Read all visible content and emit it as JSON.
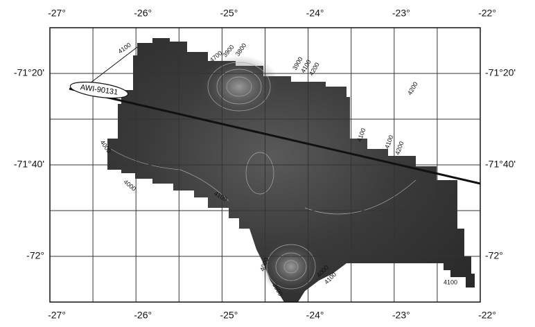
{
  "longitude_labels": [
    "-27°",
    "-26°",
    "-25°",
    "-24°",
    "-23°",
    "-22°"
  ],
  "latitude_labels": [
    "-71°20'",
    "-71°40'",
    "-72°"
  ],
  "profile_label": "AWI-90131",
  "contour_labels": [
    "4100",
    "4700",
    "3900",
    "3800",
    "3900",
    "4100",
    "4200",
    "4200",
    "4100",
    "4100",
    "4200",
    "4000",
    "4000",
    "4100",
    "4000",
    "3800",
    "4000",
    "4100",
    "4100"
  ]
}
